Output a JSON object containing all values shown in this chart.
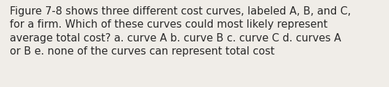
{
  "text": "Figure 7-8 shows three different cost curves, labeled A, B, and C,\nfor a firm. Which of these curves could most likely represent\naverage total cost? a. curve A b. curve B c. curve C d. curves A\nor B e. none of the curves can represent total cost",
  "background_color": "#f0ede8",
  "text_color": "#2a2a2a",
  "font_size": 10.8,
  "fig_width": 5.58,
  "fig_height": 1.26,
  "dpi": 100
}
